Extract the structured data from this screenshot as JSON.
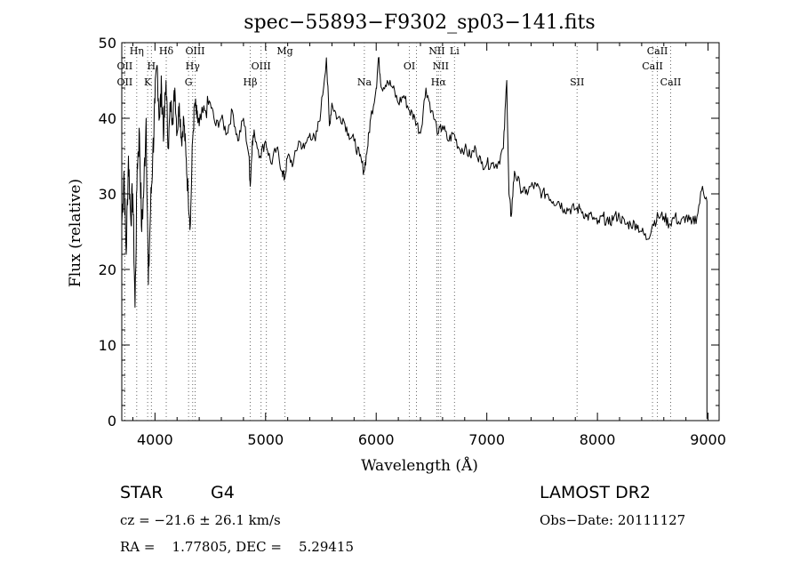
{
  "chart_data": {
    "type": "line",
    "title": "spec−55893−F9302_sp03−141.fits",
    "xlabel": "Wavelength (Å)",
    "ylabel": "Flux (relative)",
    "xlim": [
      3700,
      9100
    ],
    "ylim": [
      0,
      50
    ],
    "xticks": [
      4000,
      5000,
      6000,
      7000,
      8000,
      9000
    ],
    "yticks": [
      0,
      10,
      20,
      30,
      40,
      50
    ],
    "grid": false,
    "series": [
      {
        "color": "#000000",
        "x": [
          3700,
          3720,
          3740,
          3760,
          3780,
          3800,
          3820,
          3840,
          3860,
          3880,
          3900,
          3920,
          3940,
          3960,
          3980,
          4000,
          4020,
          4040,
          4060,
          4080,
          4100,
          4120,
          4140,
          4160,
          4180,
          4200,
          4220,
          4240,
          4260,
          4280,
          4300,
          4320,
          4340,
          4360,
          4380,
          4400,
          4450,
          4500,
          4550,
          4600,
          4650,
          4700,
          4750,
          4800,
          4850,
          4861,
          4880,
          4900,
          4950,
          5000,
          5050,
          5100,
          5150,
          5172,
          5200,
          5250,
          5300,
          5350,
          5400,
          5450,
          5500,
          5550,
          5577,
          5600,
          5650,
          5700,
          5750,
          5800,
          5850,
          5890,
          5920,
          5950,
          6000,
          6020,
          6050,
          6100,
          6150,
          6200,
          6250,
          6300,
          6350,
          6400,
          6450,
          6500,
          6563,
          6600,
          6650,
          6700,
          6750,
          6800,
          6850,
          6900,
          6950,
          7000,
          7050,
          7100,
          7150,
          7180,
          7200,
          7220,
          7250,
          7300,
          7350,
          7400,
          7450,
          7500,
          7550,
          7600,
          7650,
          7700,
          7750,
          7800,
          7850,
          7900,
          7950,
          8000,
          8050,
          8100,
          8150,
          8200,
          8250,
          8300,
          8350,
          8400,
          8450,
          8500,
          8550,
          8600,
          8650,
          8700,
          8750,
          8800,
          8850,
          8900,
          8950,
          8990
        ],
        "y": [
          26,
          33,
          22,
          35,
          27,
          30,
          15,
          34,
          38,
          25,
          31,
          40,
          18,
          28,
          35,
          42,
          47,
          40,
          44,
          38,
          45,
          36,
          42,
          40,
          44,
          38,
          42,
          37,
          40,
          35,
          30,
          26,
          37,
          42,
          40,
          39,
          41,
          42,
          39,
          40,
          38,
          41,
          37,
          40,
          35,
          31,
          37,
          38,
          35,
          37,
          34,
          36,
          33,
          32,
          35,
          34,
          37,
          36,
          38,
          37,
          41,
          48,
          39,
          42,
          40,
          40,
          38,
          37,
          35,
          33,
          36,
          40,
          44,
          48,
          44,
          45,
          44,
          42,
          43,
          41,
          40,
          38,
          44,
          41,
          38,
          39,
          37,
          38,
          36,
          36,
          35,
          36,
          34,
          34,
          34,
          34,
          36,
          45,
          30,
          27,
          33,
          31,
          30,
          31,
          31,
          30,
          30,
          29,
          29,
          28,
          28,
          28,
          28,
          27,
          27,
          26,
          27,
          26,
          27,
          27,
          26,
          26,
          26,
          25,
          24,
          26,
          27,
          27,
          26,
          27,
          26,
          27,
          26,
          27,
          31,
          29
        ]
      }
    ],
    "line_labels": [
      {
        "name": "OII",
        "row": "lower",
        "x": 3727
      },
      {
        "name": "OII",
        "row": "upper",
        "x": 3727
      },
      {
        "name": "Hη",
        "row": "top",
        "x": 3835
      },
      {
        "name": "K",
        "row": "lower",
        "x": 3934
      },
      {
        "name": "H",
        "row": "upper",
        "x": 3968
      },
      {
        "name": "Hδ",
        "row": "top",
        "x": 4102
      },
      {
        "name": "G",
        "row": "lower",
        "x": 4304
      },
      {
        "name": "Hγ",
        "row": "upper",
        "x": 4341
      },
      {
        "name": "OIII",
        "row": "top",
        "x": 4363
      },
      {
        "name": "Hβ",
        "row": "lower",
        "x": 4861
      },
      {
        "name": "OIII",
        "row": "upper",
        "x": 4959
      },
      {
        "name": "OIII",
        "row": "hidden",
        "x": 5007
      },
      {
        "name": "Mg",
        "row": "top",
        "x": 5175
      },
      {
        "name": "Na",
        "row": "lower",
        "x": 5893
      },
      {
        "name": "OI",
        "row": "upper",
        "x": 6300
      },
      {
        "name": "OI",
        "row": "hidden",
        "x": 6364
      },
      {
        "name": "NII",
        "row": "top",
        "x": 6548
      },
      {
        "name": "Hα",
        "row": "lower",
        "x": 6563
      },
      {
        "name": "NII",
        "row": "upper",
        "x": 6583
      },
      {
        "name": "Li",
        "row": "top",
        "x": 6708
      },
      {
        "name": "SII",
        "row": "lower",
        "x": 7816
      },
      {
        "name": "CaII",
        "row": "upper",
        "x": 8498
      },
      {
        "name": "CaII",
        "row": "top",
        "x": 8542
      },
      {
        "name": "CaII",
        "row": "lower",
        "x": 8662
      }
    ]
  },
  "info": {
    "class": "STAR",
    "subclass": "G4",
    "survey": "LAMOST DR2",
    "cz": "cz = −21.6 ± 26.1 km/s",
    "obs_date": "Obs−Date: 20111127",
    "radec": "RA =    1.77805, DEC =    5.29415"
  }
}
